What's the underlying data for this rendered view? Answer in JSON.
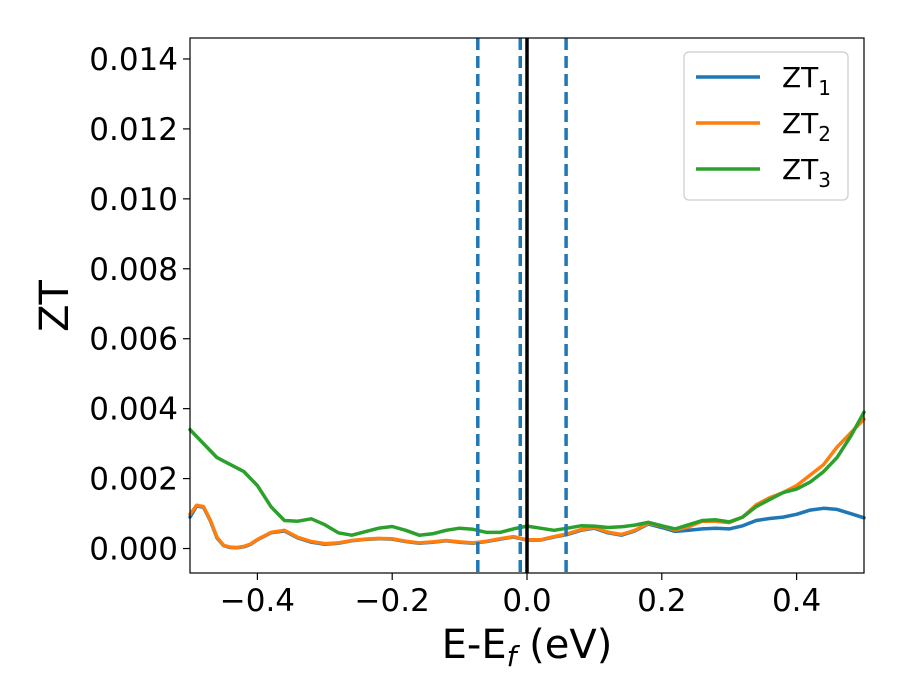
{
  "chart_data": {
    "type": "line",
    "xlabel": {
      "base": "E-E",
      "sub": "f",
      "suffix": " (eV)"
    },
    "ylabel": "ZT",
    "xlim": [
      -0.5,
      0.5
    ],
    "ylim": [
      -0.0007,
      0.0146
    ],
    "x_ticks": [
      -0.4,
      -0.2,
      0.0,
      0.2,
      0.4
    ],
    "x_tick_labels": [
      "−0.4",
      "−0.2",
      "0.0",
      "0.2",
      "0.4"
    ],
    "y_ticks": [
      0,
      0.002,
      0.004,
      0.006,
      0.008,
      0.01,
      0.012,
      0.014
    ],
    "y_tick_labels": [
      "0.000",
      "0.002",
      "0.004",
      "0.006",
      "0.008",
      "0.010",
      "0.012",
      "0.014"
    ],
    "grid": false,
    "legend_position": "top-right",
    "vlines": [
      {
        "x": -0.073,
        "style": "dashed",
        "color": "#1f77b4"
      },
      {
        "x": -0.01,
        "style": "dashed",
        "color": "#1f77b4"
      },
      {
        "x": 0.058,
        "style": "dashed",
        "color": "#1f77b4"
      },
      {
        "x": 0.0,
        "style": "solid",
        "color": "#000000"
      }
    ],
    "series": [
      {
        "name": "ZT",
        "name_sub": "1",
        "color": "#1f77b4",
        "x": [
          -0.5,
          -0.49,
          -0.48,
          -0.47,
          -0.46,
          -0.45,
          -0.44,
          -0.43,
          -0.42,
          -0.41,
          -0.4,
          -0.38,
          -0.36,
          -0.34,
          -0.32,
          -0.3,
          -0.28,
          -0.26,
          -0.24,
          -0.22,
          -0.2,
          -0.18,
          -0.16,
          -0.14,
          -0.12,
          -0.1,
          -0.08,
          -0.06,
          -0.04,
          -0.02,
          0.0,
          0.02,
          0.04,
          0.06,
          0.08,
          0.1,
          0.12,
          0.14,
          0.16,
          0.18,
          0.2,
          0.22,
          0.24,
          0.26,
          0.28,
          0.3,
          0.32,
          0.34,
          0.36,
          0.38,
          0.4,
          0.42,
          0.44,
          0.46,
          0.48,
          0.5
        ],
        "y": [
          0.0009,
          0.00122,
          0.00118,
          0.0008,
          0.0003,
          8e-05,
          3e-05,
          2e-05,
          5e-05,
          0.00012,
          0.00025,
          0.00045,
          0.0005,
          0.0003,
          0.00018,
          0.00012,
          0.00015,
          0.00022,
          0.00026,
          0.00028,
          0.00027,
          0.0002,
          0.00015,
          0.00018,
          0.00022,
          0.00018,
          0.00015,
          0.0002,
          0.00027,
          0.00033,
          0.00024,
          0.00024,
          0.00033,
          0.0004,
          0.00052,
          0.00058,
          0.00045,
          0.00038,
          0.0005,
          0.0007,
          0.0006,
          0.00049,
          0.00052,
          0.00056,
          0.00058,
          0.00056,
          0.00065,
          0.0008,
          0.00086,
          0.0009,
          0.00098,
          0.0011,
          0.00115,
          0.00112,
          0.001,
          0.00088
        ]
      },
      {
        "name": "ZT",
        "name_sub": "2",
        "color": "#ff7f0e",
        "x": [
          -0.5,
          -0.49,
          -0.48,
          -0.47,
          -0.46,
          -0.45,
          -0.44,
          -0.43,
          -0.42,
          -0.41,
          -0.4,
          -0.38,
          -0.36,
          -0.34,
          -0.32,
          -0.3,
          -0.28,
          -0.26,
          -0.24,
          -0.22,
          -0.2,
          -0.18,
          -0.16,
          -0.14,
          -0.12,
          -0.1,
          -0.08,
          -0.06,
          -0.04,
          -0.02,
          0.0,
          0.02,
          0.04,
          0.06,
          0.08,
          0.1,
          0.12,
          0.14,
          0.16,
          0.18,
          0.2,
          0.22,
          0.24,
          0.26,
          0.28,
          0.3,
          0.32,
          0.34,
          0.36,
          0.38,
          0.4,
          0.42,
          0.44,
          0.46,
          0.48,
          0.5
        ],
        "y": [
          0.00098,
          0.00124,
          0.0012,
          0.00082,
          0.00032,
          9e-05,
          4e-05,
          3e-05,
          6e-05,
          0.00013,
          0.00026,
          0.00046,
          0.00052,
          0.00032,
          0.0002,
          0.00014,
          0.00016,
          0.00023,
          0.00027,
          0.00029,
          0.00028,
          0.00021,
          0.00016,
          0.00019,
          0.00023,
          0.00019,
          0.00016,
          0.00021,
          0.00028,
          0.00034,
          0.00025,
          0.00025,
          0.00034,
          0.00042,
          0.00054,
          0.0006,
          0.00047,
          0.0004,
          0.00052,
          0.00072,
          0.00064,
          0.00053,
          0.00062,
          0.00078,
          0.00078,
          0.00074,
          0.0009,
          0.00125,
          0.00145,
          0.0016,
          0.0018,
          0.0021,
          0.0024,
          0.0029,
          0.0033,
          0.0037
        ]
      },
      {
        "name": "ZT",
        "name_sub": "3",
        "color": "#2ca02c",
        "x": [
          -0.5,
          -0.48,
          -0.46,
          -0.44,
          -0.42,
          -0.4,
          -0.38,
          -0.36,
          -0.34,
          -0.32,
          -0.3,
          -0.28,
          -0.26,
          -0.24,
          -0.22,
          -0.2,
          -0.18,
          -0.16,
          -0.14,
          -0.12,
          -0.1,
          -0.08,
          -0.06,
          -0.04,
          -0.02,
          0.0,
          0.02,
          0.04,
          0.06,
          0.08,
          0.1,
          0.12,
          0.14,
          0.16,
          0.18,
          0.2,
          0.22,
          0.24,
          0.26,
          0.28,
          0.3,
          0.32,
          0.34,
          0.36,
          0.38,
          0.4,
          0.42,
          0.44,
          0.46,
          0.48,
          0.5
        ],
        "y": [
          0.0034,
          0.003,
          0.0026,
          0.0024,
          0.0022,
          0.0018,
          0.0012,
          0.0008,
          0.00078,
          0.00085,
          0.00068,
          0.00045,
          0.00038,
          0.00048,
          0.00058,
          0.00063,
          0.00052,
          0.00038,
          0.00042,
          0.00052,
          0.00058,
          0.00055,
          0.00046,
          0.00046,
          0.00056,
          0.00064,
          0.00058,
          0.00052,
          0.00058,
          0.00065,
          0.00064,
          0.0006,
          0.00062,
          0.00067,
          0.00075,
          0.00065,
          0.00056,
          0.00068,
          0.0008,
          0.00082,
          0.00076,
          0.0009,
          0.0012,
          0.0014,
          0.0016,
          0.0017,
          0.0019,
          0.0022,
          0.0026,
          0.0032,
          0.0039
        ]
      }
    ]
  }
}
